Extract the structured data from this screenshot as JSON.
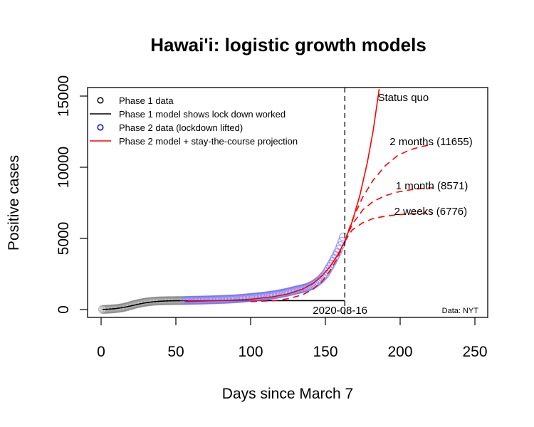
{
  "chart_data": {
    "type": "line",
    "title": "Hawai'i: logistic growth models",
    "xlabel": "Days since March 7",
    "ylabel": "Positive cases",
    "xlim": [
      0,
      250
    ],
    "ylim": [
      0,
      15000
    ],
    "x_ticks": [
      0,
      50,
      100,
      150,
      200,
      250
    ],
    "y_ticks": [
      0,
      5000,
      10000,
      15000
    ],
    "x_tick_labels": [
      "0",
      "50",
      "100",
      "150",
      "200",
      "250"
    ],
    "y_tick_labels": [
      "0",
      "5000",
      "10000",
      "15000"
    ],
    "grid": false,
    "legend_position": "top-left",
    "legend": [
      {
        "label": "Phase 1 data",
        "kind": "point",
        "color": "#000000"
      },
      {
        "label": "Phase 1 model shows lock down worked",
        "kind": "line",
        "color": "#000000"
      },
      {
        "label": "Phase 2 data (lockdown lifted)",
        "kind": "point",
        "color": "#0000ff"
      },
      {
        "label": "Phase 2 model + stay-the-course projection",
        "kind": "line",
        "color": "#ff0000"
      }
    ],
    "colors": {
      "phase1_points": "#808080",
      "phase2_points": "#6a6af0",
      "phase1_model": "#000000",
      "phase2_model": "#ff0000",
      "cutoff_line": "#000000"
    },
    "cutoff": {
      "x": 163,
      "label": "2020-08-16"
    },
    "source_label": "Data: NYT",
    "series": [
      {
        "name": "Phase 1 data",
        "style": "points",
        "x": [
          1,
          3,
          5,
          7,
          9,
          11,
          13,
          15,
          17,
          19,
          21,
          23,
          25,
          27,
          29,
          31,
          33,
          35,
          37,
          39,
          41,
          43,
          45,
          47,
          49,
          51,
          53,
          55
        ],
        "y": [
          10,
          20,
          30,
          45,
          60,
          80,
          110,
          150,
          200,
          260,
          320,
          380,
          430,
          470,
          510,
          540,
          565,
          585,
          600,
          610,
          615,
          620,
          625,
          628,
          630,
          632,
          634,
          636
        ]
      },
      {
        "name": "Phase 1 model shows lock down worked",
        "style": "line",
        "x": [
          1,
          5,
          10,
          15,
          20,
          25,
          30,
          35,
          40,
          45,
          50,
          55,
          60,
          80,
          100,
          120,
          140,
          163
        ],
        "y": [
          10,
          30,
          70,
          150,
          260,
          380,
          480,
          550,
          590,
          610,
          620,
          625,
          627,
          628,
          628,
          628,
          628,
          628
        ]
      },
      {
        "name": "Phase 2 data (lockdown lifted)",
        "style": "points",
        "x": [
          56,
          60,
          65,
          70,
          75,
          80,
          85,
          90,
          95,
          100,
          105,
          110,
          115,
          120,
          125,
          130,
          135,
          138,
          141,
          144,
          147,
          150,
          152,
          154,
          156,
          158,
          160,
          162
        ],
        "y": [
          640,
          650,
          660,
          675,
          690,
          710,
          730,
          760,
          800,
          850,
          900,
          960,
          1030,
          1120,
          1230,
          1360,
          1480,
          1560,
          1700,
          1900,
          2150,
          2500,
          2850,
          3200,
          3600,
          4000,
          4500,
          5100
        ]
      },
      {
        "name": "Phase 2 model + stay-the-course projection (Status quo)",
        "style": "line",
        "x": [
          56,
          70,
          85,
          100,
          115,
          125,
          135,
          142,
          148,
          153,
          158,
          163,
          168,
          173,
          178,
          182,
          186
        ],
        "y": [
          560,
          600,
          650,
          730,
          900,
          1100,
          1450,
          1850,
          2400,
          3000,
          3800,
          4800,
          6200,
          8000,
          10300,
          12600,
          15500
        ]
      },
      {
        "name": "2 months (11655)",
        "style": "dashed",
        "x": [
          163,
          168,
          175,
          182,
          190,
          198,
          206,
          214,
          222
        ],
        "y": [
          4800,
          6300,
          7900,
          9100,
          10100,
          10800,
          11200,
          11450,
          11600
        ]
      },
      {
        "name": "1 month (8571)",
        "style": "dashed",
        "x": [
          163,
          168,
          175,
          182,
          190,
          198,
          206,
          214,
          222
        ],
        "y": [
          4800,
          6000,
          7000,
          7600,
          8000,
          8250,
          8400,
          8500,
          8560
        ]
      },
      {
        "name": "2 weeks (6776)",
        "style": "dashed",
        "x": [
          163,
          168,
          175,
          182,
          190,
          198,
          206,
          214,
          222
        ],
        "y": [
          4800,
          5600,
          6100,
          6400,
          6560,
          6660,
          6720,
          6750,
          6770
        ]
      },
      {
        "name": "Phase 2 model fit (dashed, pre-cutoff)",
        "style": "dashed",
        "x": [
          100,
          115,
          125,
          135,
          142,
          148,
          153,
          158,
          163
        ],
        "y": [
          560,
          620,
          760,
          1050,
          1450,
          2000,
          2700,
          3600,
          4800
        ]
      }
    ],
    "annotations": [
      {
        "text": "Status quo",
        "x": 185,
        "y": 14900
      },
      {
        "text": "2 months (11655)",
        "x": 193,
        "y": 11800
      },
      {
        "text": "1 month (8571)",
        "x": 197,
        "y": 8700
      },
      {
        "text": "2 weeks (6776)",
        "x": 196,
        "y": 6900
      }
    ]
  }
}
